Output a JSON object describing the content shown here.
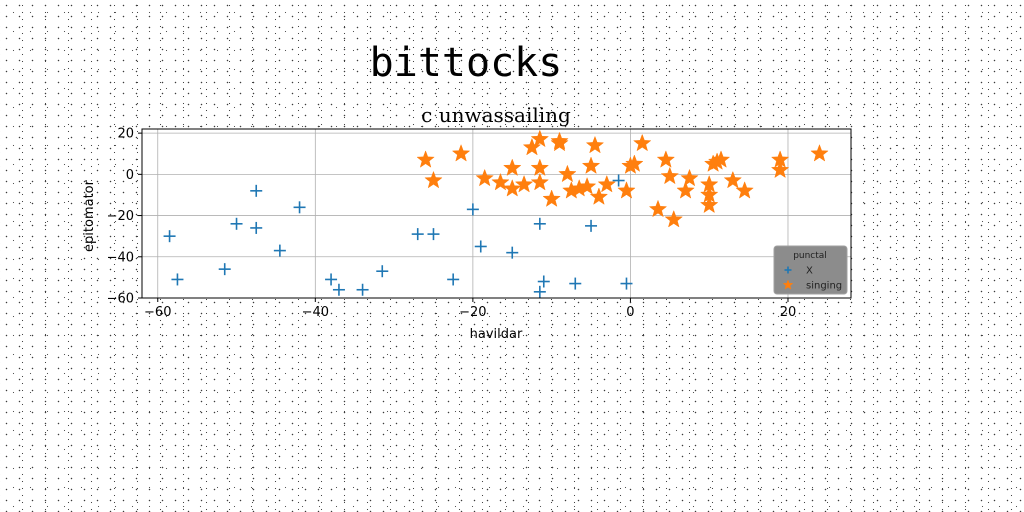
{
  "suptitle": "bittocks",
  "chart_data": {
    "type": "scatter",
    "title": "c unwassailing",
    "xlabel": "havildar",
    "ylabel": "epitomator",
    "xlim": [
      -62,
      28
    ],
    "ylim": [
      -60,
      22
    ],
    "xticks": [
      -60,
      -40,
      -20,
      0,
      20
    ],
    "xtick_labels": [
      "−60",
      "−40",
      "−20",
      "0",
      "20"
    ],
    "yticks": [
      -60,
      -40,
      -20,
      0,
      20
    ],
    "ytick_labels": [
      "−60",
      "−40",
      "−20",
      "0",
      "20"
    ],
    "grid": true,
    "legend": {
      "title": "punctal",
      "placement": "lower-right"
    },
    "series": [
      {
        "name": "X",
        "marker": "plus",
        "color": "#1f77b4",
        "points": [
          [
            -58.5,
            -30
          ],
          [
            -57.5,
            -51
          ],
          [
            -51.5,
            -46
          ],
          [
            -50,
            -24
          ],
          [
            -47.5,
            -8
          ],
          [
            -47.5,
            -26
          ],
          [
            -44.5,
            -37
          ],
          [
            -42,
            -16
          ],
          [
            -38,
            -51
          ],
          [
            -37,
            -56
          ],
          [
            -34,
            -56
          ],
          [
            -31.5,
            -47
          ],
          [
            -27,
            -29
          ],
          [
            -25,
            -29
          ],
          [
            -22.5,
            -51
          ],
          [
            -20,
            -17
          ],
          [
            -19,
            -35
          ],
          [
            -15,
            -38
          ],
          [
            -11.5,
            -24
          ],
          [
            -11.5,
            -57
          ],
          [
            -11,
            -52
          ],
          [
            -7,
            -53
          ],
          [
            -5,
            -25
          ],
          [
            -1.5,
            -3
          ],
          [
            -0.5,
            -53
          ]
        ]
      },
      {
        "name": "singing",
        "marker": "star",
        "color": "#ff7f0e",
        "points": [
          [
            -26,
            7
          ],
          [
            -25,
            -3
          ],
          [
            -21.5,
            10
          ],
          [
            -18.5,
            -2
          ],
          [
            -16.5,
            -4
          ],
          [
            -15,
            3
          ],
          [
            -15,
            -7
          ],
          [
            -13.5,
            -5
          ],
          [
            -12.5,
            13
          ],
          [
            -11.5,
            3
          ],
          [
            -11.5,
            17
          ],
          [
            -11.5,
            -4
          ],
          [
            -10,
            -12
          ],
          [
            -9,
            16
          ],
          [
            -9,
            15
          ],
          [
            -8,
            0
          ],
          [
            -7.5,
            -8
          ],
          [
            -6.5,
            -7
          ],
          [
            -5.5,
            -6
          ],
          [
            -5,
            4
          ],
          [
            -4.5,
            14
          ],
          [
            -4,
            -11
          ],
          [
            -3,
            -5
          ],
          [
            -0.5,
            -8
          ],
          [
            0,
            4
          ],
          [
            0.5,
            5
          ],
          [
            1.5,
            15
          ],
          [
            3.5,
            -17
          ],
          [
            4.5,
            7
          ],
          [
            5,
            -1
          ],
          [
            5.5,
            -22
          ],
          [
            7,
            -8
          ],
          [
            7.5,
            -2
          ],
          [
            10,
            -5
          ],
          [
            10,
            -10
          ],
          [
            10,
            -15
          ],
          [
            10.5,
            5
          ],
          [
            11,
            6
          ],
          [
            11.5,
            7
          ],
          [
            13,
            -3
          ],
          [
            14.5,
            -8
          ],
          [
            19,
            7
          ],
          [
            19,
            2
          ],
          [
            24,
            10
          ]
        ]
      }
    ]
  }
}
